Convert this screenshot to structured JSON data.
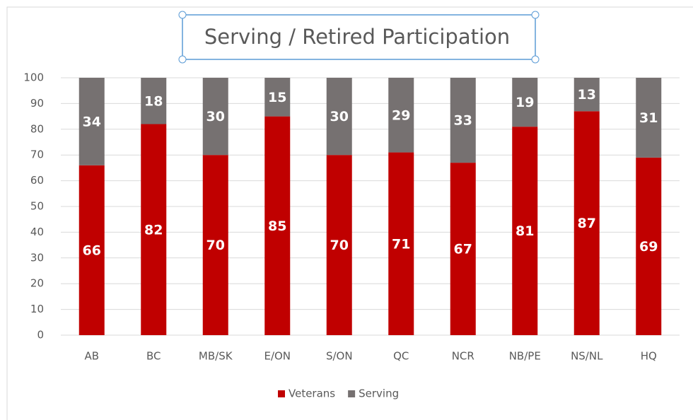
{
  "chart_data": {
    "type": "bar",
    "stacked": true,
    "title": "Serving / Retired Participation",
    "categories": [
      "AB",
      "BC",
      "MB/SK",
      "E/ON",
      "S/ON",
      "QC",
      "NCR",
      "NB/PE",
      "NS/NL",
      "HQ"
    ],
    "series": [
      {
        "name": "Veterans",
        "color": "#c00000",
        "values": [
          66,
          82,
          70,
          85,
          70,
          71,
          67,
          81,
          87,
          69
        ]
      },
      {
        "name": "Serving",
        "color": "#767171",
        "values": [
          34,
          18,
          30,
          15,
          30,
          29,
          33,
          19,
          13,
          31
        ]
      }
    ],
    "ylim": [
      0,
      100
    ],
    "yticks": [
      0,
      10,
      20,
      30,
      40,
      50,
      60,
      70,
      80,
      90,
      100
    ],
    "grid": true,
    "legend": "bottom"
  }
}
